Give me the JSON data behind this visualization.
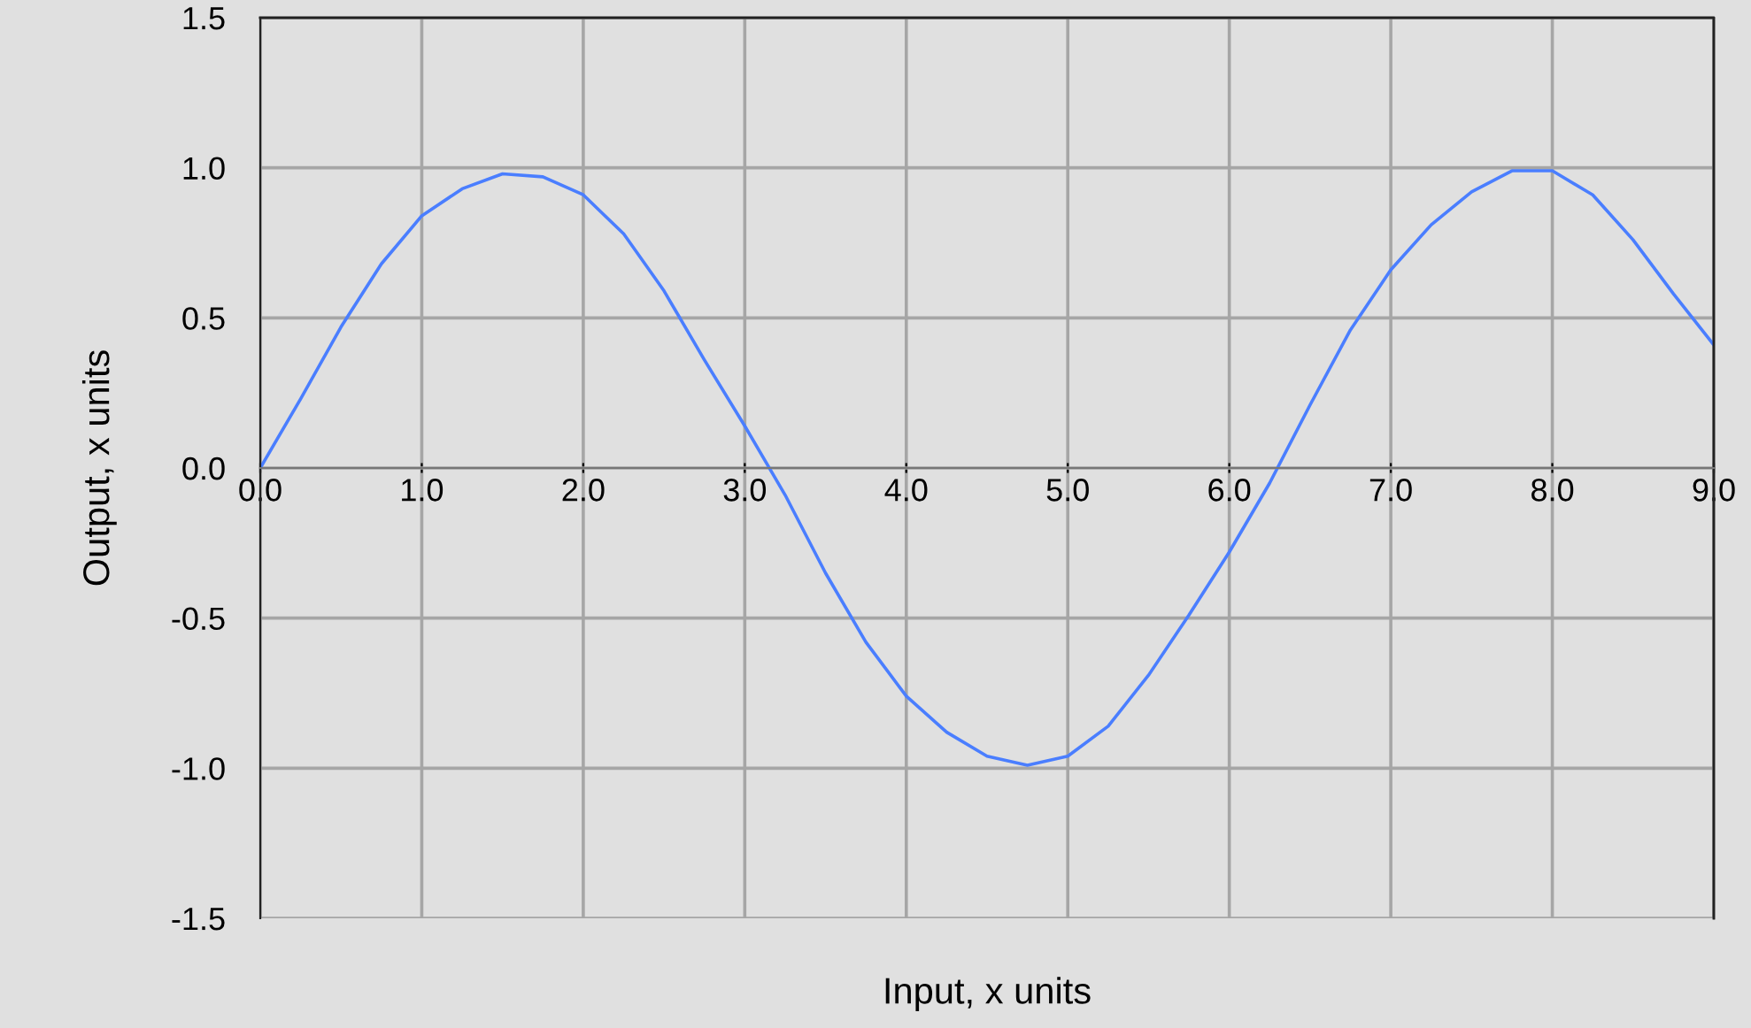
{
  "chart_data": {
    "type": "line",
    "xlabel": "Input, x units",
    "ylabel": "Output, x units",
    "x": [
      0,
      0.25,
      0.5,
      0.75,
      1,
      1.25,
      1.5,
      1.75,
      2,
      2.25,
      2.5,
      2.75,
      3,
      3.25,
      3.5,
      3.75,
      4,
      4.25,
      4.5,
      4.75,
      5,
      5.25,
      5.5,
      5.75,
      6,
      6.25,
      6.5,
      6.75,
      7,
      7.25,
      7.5,
      7.75,
      8,
      8.25,
      8.5,
      8.75,
      9
    ],
    "series": [
      {
        "color": "#4a7eff",
        "values": [
          0,
          0.23,
          0.47,
          0.68,
          0.84,
          0.93,
          0.98,
          0.97,
          0.91,
          0.78,
          0.59,
          0.36,
          0.14,
          -0.09,
          -0.35,
          -0.58,
          -0.76,
          -0.88,
          -0.96,
          -0.99,
          -0.96,
          -0.86,
          -0.69,
          -0.49,
          -0.28,
          -0.05,
          0.21,
          0.46,
          0.66,
          0.81,
          0.92,
          0.99,
          0.99,
          0.91,
          0.76,
          0.58,
          0.41
        ]
      }
    ],
    "xlim": [
      0,
      9
    ],
    "ylim": [
      -1.5,
      1.5
    ],
    "xticks": [
      {
        "value": 0,
        "label": "0.0"
      },
      {
        "value": 1,
        "label": "1.0"
      },
      {
        "value": 2,
        "label": "2.0"
      },
      {
        "value": 3,
        "label": "3.0"
      },
      {
        "value": 4,
        "label": "4.0"
      },
      {
        "value": 5,
        "label": "5.0"
      },
      {
        "value": 6,
        "label": "6.0"
      },
      {
        "value": 7,
        "label": "7.0"
      },
      {
        "value": 8,
        "label": "8.0"
      },
      {
        "value": 9,
        "label": "9.0"
      }
    ],
    "yticks": [
      {
        "value": -1.5,
        "label": "-1.5"
      },
      {
        "value": -1,
        "label": "-1.0"
      },
      {
        "value": -0.5,
        "label": "-0.5"
      },
      {
        "value": 0,
        "label": "0.0"
      },
      {
        "value": 0.5,
        "label": "0.5"
      },
      {
        "value": 1,
        "label": "1.0"
      },
      {
        "value": 1.5,
        "label": "1.5"
      }
    ],
    "grid": true,
    "marker": "none",
    "line_style": "solid"
  }
}
